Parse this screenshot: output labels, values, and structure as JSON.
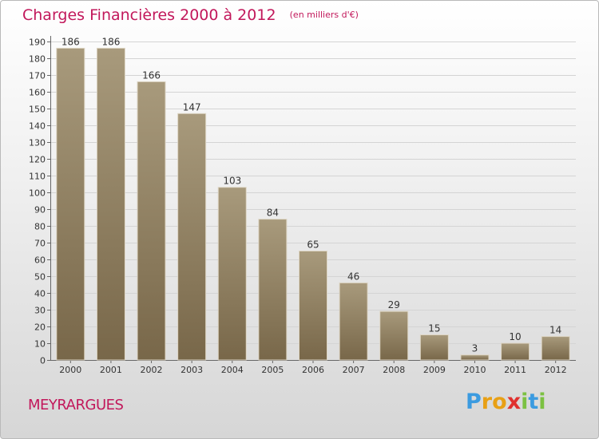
{
  "header": {
    "title": "Charges Financières 2000 à 2012",
    "subtitle": "(en milliers d'€)"
  },
  "footer": {
    "commune": "MEYRARGUES",
    "logo_text": "Proxiti"
  },
  "colors": {
    "title": "#c2185b",
    "bar_light": "#a89a7c",
    "bar_dark": "#786749",
    "logo": [
      "#3b9be0",
      "#e8a015",
      "#e8a015",
      "#e0312f",
      "#7cc142",
      "#3b9be0",
      "#7cc142"
    ]
  },
  "chart_data": {
    "type": "bar",
    "title": "Charges Financières 2000 à 2012",
    "subtitle": "(en milliers d'€)",
    "categories": [
      "2000",
      "2001",
      "2002",
      "2003",
      "2004",
      "2005",
      "2006",
      "2007",
      "2008",
      "2009",
      "2010",
      "2011",
      "2012"
    ],
    "values": [
      186,
      186,
      166,
      147,
      103,
      84,
      65,
      46,
      29,
      15,
      3,
      10,
      14
    ],
    "ylim": [
      0,
      190
    ],
    "yticks": [
      0,
      10,
      20,
      30,
      40,
      50,
      60,
      70,
      80,
      90,
      100,
      110,
      120,
      130,
      140,
      150,
      160,
      170,
      180,
      190
    ],
    "grid": true,
    "xlabel": "",
    "ylabel": ""
  }
}
